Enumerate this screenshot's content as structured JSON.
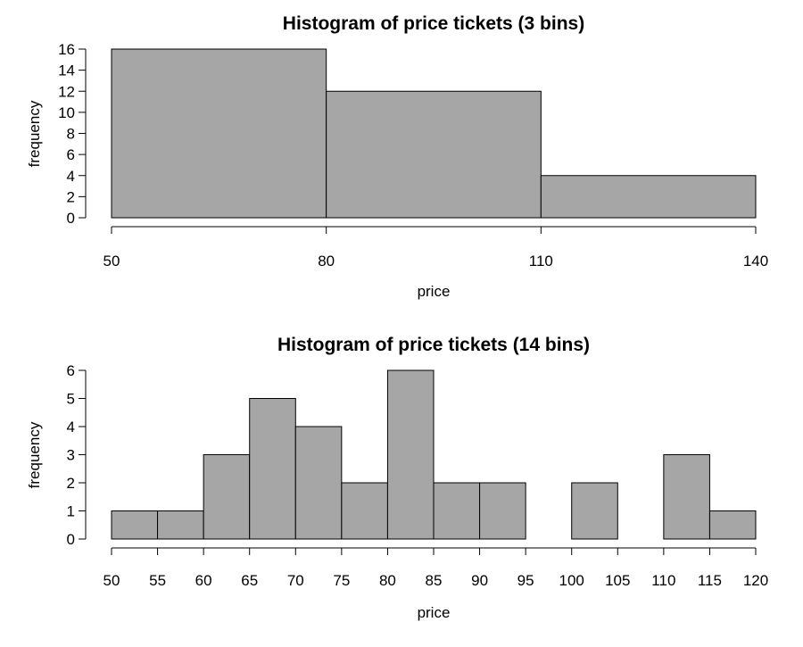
{
  "chart_data": [
    {
      "type": "bar",
      "title": "Histogram of price tickets (3 bins)",
      "xlabel": "price",
      "ylabel": "frequency",
      "bins": [
        [
          50,
          80
        ],
        [
          80,
          110
        ],
        [
          110,
          140
        ]
      ],
      "values": [
        16,
        12,
        4
      ],
      "xlim": [
        50,
        140
      ],
      "ylim": [
        0,
        16
      ],
      "xticks": [
        "50",
        "80",
        "110",
        "140"
      ],
      "yticks": [
        "0",
        "2",
        "4",
        "6",
        "8",
        "10",
        "12",
        "14",
        "16"
      ],
      "bar_color": "#a6a6a6",
      "grid": false
    },
    {
      "type": "bar",
      "title": "Histogram of price tickets (14 bins)",
      "xlabel": "price",
      "ylabel": "frequency",
      "bins": [
        [
          50,
          55
        ],
        [
          55,
          60
        ],
        [
          60,
          65
        ],
        [
          65,
          70
        ],
        [
          70,
          75
        ],
        [
          75,
          80
        ],
        [
          80,
          85
        ],
        [
          85,
          90
        ],
        [
          90,
          95
        ],
        [
          95,
          100
        ],
        [
          100,
          105
        ],
        [
          105,
          110
        ],
        [
          110,
          115
        ],
        [
          115,
          120
        ]
      ],
      "values": [
        1,
        1,
        3,
        5,
        4,
        2,
        6,
        2,
        2,
        0,
        2,
        0,
        3,
        1
      ],
      "xlim": [
        50,
        120
      ],
      "ylim": [
        0,
        6
      ],
      "xticks": [
        "50",
        "55",
        "60",
        "65",
        "70",
        "75",
        "80",
        "85",
        "90",
        "95",
        "100",
        "105",
        "110",
        "115",
        "120"
      ],
      "yticks": [
        "0",
        "1",
        "2",
        "3",
        "4",
        "5",
        "6"
      ],
      "bar_color": "#a6a6a6",
      "grid": false
    }
  ]
}
